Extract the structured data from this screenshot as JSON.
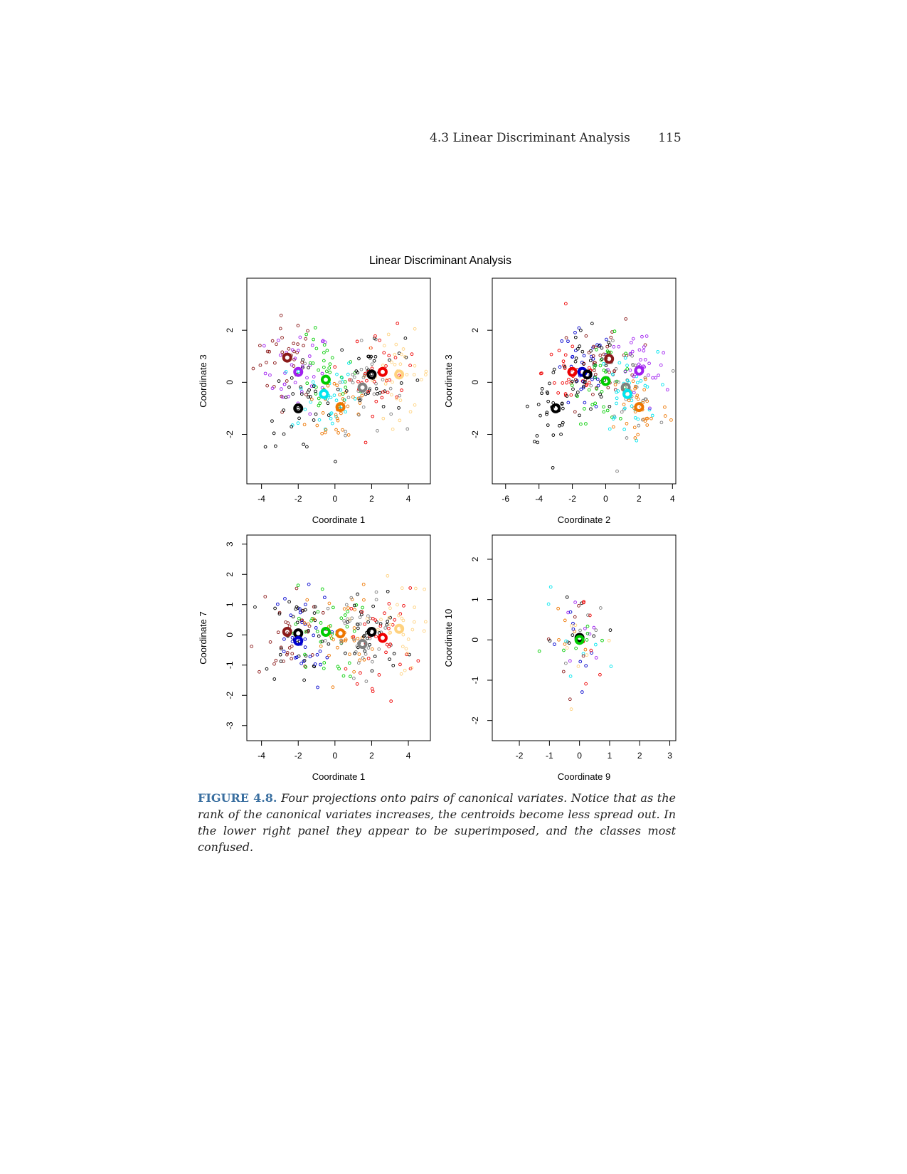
{
  "header": {
    "section_title": "4.3 Linear Discriminant Analysis",
    "page_number": "115"
  },
  "figure": {
    "title": "Linear Discriminant Analysis",
    "caption_label": "FIGURE 4.8.",
    "caption_text": "Four projections onto pairs of canonical variates. Notice that as the rank of the canonical variates increases, the centroids become less spread out. In the lower right panel they appear to be superimposed, and the classes most confused."
  },
  "chart_data": [
    {
      "type": "scatter",
      "panel": "top-left",
      "xlabel": "Coordinate 1",
      "ylabel": "Coordinate 3",
      "xlim": [
        -4.8,
        5.2
      ],
      "ylim": [
        -3.9,
        4.0
      ],
      "xticks": [
        -4,
        -2,
        0,
        2,
        4
      ],
      "yticks": [
        -2,
        0,
        2
      ],
      "centroids": [
        {
          "x": -2.6,
          "y": 0.95,
          "color": "#8b1a1a"
        },
        {
          "x": -2.0,
          "y": 0.4,
          "color": "#a020f0"
        },
        {
          "x": -0.5,
          "y": 0.1,
          "color": "#00cc00"
        },
        {
          "x": -0.6,
          "y": -0.45,
          "color": "#00e5ee"
        },
        {
          "x": 0.3,
          "y": -0.95,
          "color": "#ee7600"
        },
        {
          "x": 1.5,
          "y": -0.2,
          "color": "#808080"
        },
        {
          "x": 2.0,
          "y": 0.3,
          "color": "#000000"
        },
        {
          "x": 2.6,
          "y": 0.4,
          "color": "#ee0000"
        },
        {
          "x": 3.5,
          "y": 0.3,
          "color": "#ffd27f"
        },
        {
          "x": -2.0,
          "y": -1.0,
          "color": "#000000"
        }
      ]
    },
    {
      "type": "scatter",
      "panel": "top-right",
      "xlabel": "Coordinate 2",
      "ylabel": "Coordinate 3",
      "xlim": [
        -6.8,
        4.2
      ],
      "ylim": [
        -3.9,
        4.0
      ],
      "xticks": [
        -6,
        -4,
        -2,
        0,
        2,
        4
      ],
      "yticks": [
        -2,
        0,
        2
      ],
      "centroids": [
        {
          "x": -2.0,
          "y": 0.4,
          "color": "#ee0000"
        },
        {
          "x": -1.4,
          "y": 0.4,
          "color": "#0000cd"
        },
        {
          "x": -1.1,
          "y": 0.3,
          "color": "#000000"
        },
        {
          "x": 0.2,
          "y": 0.9,
          "color": "#8b1a1a"
        },
        {
          "x": 0.0,
          "y": 0.05,
          "color": "#00cc00"
        },
        {
          "x": 1.2,
          "y": -0.2,
          "color": "#808080"
        },
        {
          "x": 1.3,
          "y": -0.45,
          "color": "#00e5ee"
        },
        {
          "x": 2.0,
          "y": 0.45,
          "color": "#a020f0"
        },
        {
          "x": 2.0,
          "y": -0.95,
          "color": "#ee7600"
        },
        {
          "x": -3.0,
          "y": -1.0,
          "color": "#000000"
        }
      ]
    },
    {
      "type": "scatter",
      "panel": "bottom-left",
      "xlabel": "Coordinate 1",
      "ylabel": "Coordinate 7",
      "xlim": [
        -4.8,
        5.2
      ],
      "ylim": [
        -3.5,
        3.3
      ],
      "xticks": [
        -4,
        -2,
        0,
        2,
        4
      ],
      "yticks": [
        -3,
        -2,
        -1,
        0,
        1,
        2,
        3
      ],
      "centroids": [
        {
          "x": -2.6,
          "y": 0.1,
          "color": "#8b1a1a"
        },
        {
          "x": -2.0,
          "y": 0.05,
          "color": "#000000"
        },
        {
          "x": -2.0,
          "y": -0.2,
          "color": "#0000cd"
        },
        {
          "x": -0.5,
          "y": 0.1,
          "color": "#00cc00"
        },
        {
          "x": 0.3,
          "y": 0.05,
          "color": "#ee7600"
        },
        {
          "x": 1.5,
          "y": -0.3,
          "color": "#808080"
        },
        {
          "x": 2.0,
          "y": 0.1,
          "color": "#000000"
        },
        {
          "x": 2.6,
          "y": -0.1,
          "color": "#ee0000"
        },
        {
          "x": 3.5,
          "y": 0.2,
          "color": "#ffd27f"
        }
      ]
    },
    {
      "type": "scatter",
      "panel": "bottom-right",
      "xlabel": "Coordinate 9",
      "ylabel": "Coordinate 10",
      "xlim": [
        -2.9,
        3.2
      ],
      "ylim": [
        -2.5,
        2.6
      ],
      "xticks": [
        -2,
        -1,
        0,
        1,
        2,
        3
      ],
      "yticks": [
        -2,
        -1,
        0,
        1,
        2
      ],
      "centroids": [
        {
          "x": 0.0,
          "y": 0.05,
          "color": "#000000"
        },
        {
          "x": 0.0,
          "y": 0.0,
          "color": "#00cc00"
        }
      ]
    }
  ],
  "colors": {
    "class_palette": [
      "#000000",
      "#ee0000",
      "#00cc00",
      "#0000cd",
      "#00e5ee",
      "#a020f0",
      "#ffd27f",
      "#808080",
      "#8b1a1a",
      "#ee7600"
    ],
    "caption_label": "#3a6fa0"
  }
}
